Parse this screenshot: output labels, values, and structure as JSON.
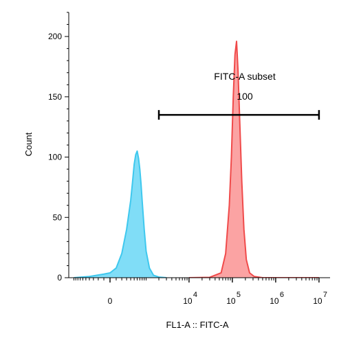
{
  "chart_data": {
    "type": "area",
    "title": "",
    "xlabel": "FL1-A :: FITC-A",
    "ylabel": "Count",
    "x_scale": "biexponential",
    "ylim": [
      0,
      220
    ],
    "y_ticks": [
      0,
      50,
      100,
      150,
      200
    ],
    "x_tick_labels": [
      {
        "label": "0",
        "exp": ""
      },
      {
        "label": "10",
        "exp": "4"
      },
      {
        "label": "10",
        "exp": "5"
      },
      {
        "label": "10",
        "exp": "6"
      },
      {
        "label": "10",
        "exp": "7"
      }
    ],
    "series": [
      {
        "color": "#3ec8ee",
        "fill": "#80ddf7",
        "points": [
          [
            -1000,
            0
          ],
          [
            -400,
            1
          ],
          [
            -100,
            3
          ],
          [
            0,
            4
          ],
          [
            100,
            8
          ],
          [
            200,
            20
          ],
          [
            300,
            40
          ],
          [
            400,
            64
          ],
          [
            450,
            79
          ],
          [
            500,
            94
          ],
          [
            550,
            102
          ],
          [
            600,
            105
          ],
          [
            650,
            99
          ],
          [
            700,
            90
          ],
          [
            750,
            78
          ],
          [
            800,
            64
          ],
          [
            900,
            40
          ],
          [
            1000,
            22
          ],
          [
            1200,
            8
          ],
          [
            1500,
            2
          ],
          [
            2000,
            0.5
          ],
          [
            3000,
            0
          ]
        ]
      },
      {
        "color": "#f04a4a",
        "fill": "#fba3a3",
        "points": [
          [
            10000,
            0
          ],
          [
            30000,
            0.3
          ],
          [
            55000,
            4
          ],
          [
            70000,
            20
          ],
          [
            85000,
            60
          ],
          [
            95000,
            100
          ],
          [
            105000,
            150
          ],
          [
            115000,
            185
          ],
          [
            125000,
            196
          ],
          [
            135000,
            172
          ],
          [
            148000,
            130
          ],
          [
            165000,
            80
          ],
          [
            185000,
            40
          ],
          [
            210000,
            15
          ],
          [
            250000,
            4
          ],
          [
            320000,
            1
          ],
          [
            500000,
            0
          ],
          [
            10000000,
            0
          ]
        ]
      }
    ],
    "gate": {
      "name": "FITC-A subset",
      "value": "100",
      "x_range": [
        2000,
        10000000
      ],
      "y": 135
    }
  }
}
